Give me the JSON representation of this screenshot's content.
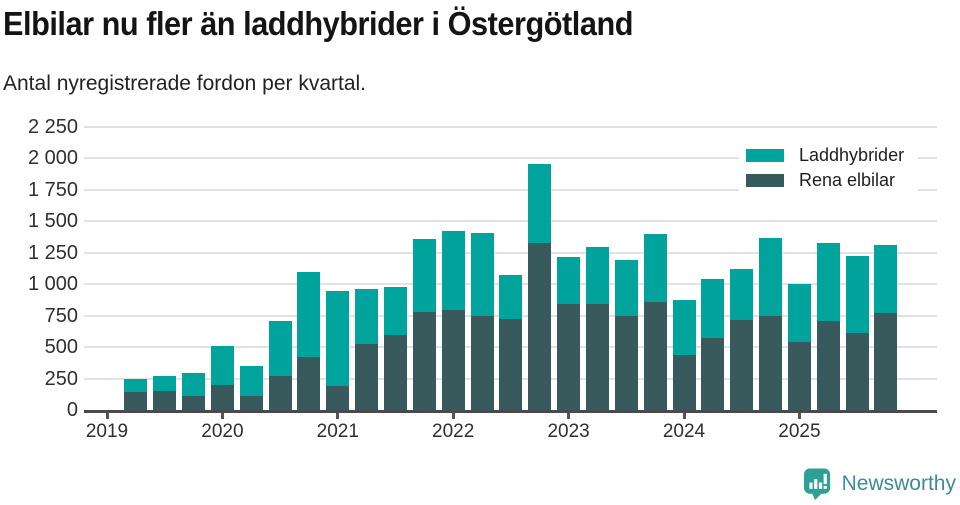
{
  "title": "Elbilar nu fler än laddhybrider i Östergötland",
  "subtitle": "Antal nyregistrerade fordon per kvartal.",
  "colors": {
    "laddhybrider": "#00a49c",
    "rena_elbilar": "#385a5c",
    "gridline": "#e2e2e2",
    "axis": "#4a4a4a",
    "background": "#ffffff",
    "logo_icon": "#2fa096",
    "logo_text": "#3e8c96"
  },
  "chart_data": {
    "type": "bar",
    "stacked": true,
    "title": "Elbilar nu fler än laddhybrider i Östergötland",
    "subtitle": "Antal nyregistrerade fordon per kvartal.",
    "categories": [
      "2019 Q2",
      "2019 Q3",
      "2019 Q4",
      "2020 Q1",
      "2020 Q2",
      "2020 Q3",
      "2020 Q4",
      "2021 Q1",
      "2021 Q2",
      "2021 Q3",
      "2021 Q4",
      "2022 Q1",
      "2022 Q2",
      "2022 Q3",
      "2022 Q4",
      "2023 Q1",
      "2023 Q2",
      "2023 Q3",
      "2023 Q4",
      "2024 Q1",
      "2024 Q2",
      "2024 Q3",
      "2024 Q4",
      "2025 Q1",
      "2025 Q2",
      "2025 Q3",
      "2025 Q4"
    ],
    "series": [
      {
        "name": "Rena elbilar",
        "color": "#385a5c",
        "values": [
          140,
          150,
          115,
          195,
          115,
          270,
          425,
          190,
          525,
          600,
          780,
          795,
          750,
          725,
          1330,
          845,
          845,
          750,
          860,
          435,
          575,
          715,
          750,
          540,
          705,
          610,
          770
        ]
      },
      {
        "name": "Laddhybrider",
        "color": "#00a49c",
        "values": [
          110,
          120,
          180,
          310,
          235,
          440,
          670,
          760,
          440,
          380,
          580,
          630,
          655,
          345,
          625,
          375,
          450,
          440,
          540,
          440,
          470,
          410,
          615,
          465,
          625,
          615,
          545
        ]
      }
    ],
    "legend": [
      {
        "label": "Laddhybrider",
        "color": "#00a49c"
      },
      {
        "label": "Rena elbilar",
        "color": "#385a5c"
      }
    ],
    "legend_position": "top-right",
    "grid": true,
    "ylim": [
      0,
      2250
    ],
    "y_ticks": [
      0,
      250,
      500,
      750,
      1000,
      1250,
      1500,
      1750,
      2000,
      2250
    ],
    "y_tick_labels": [
      "0",
      "250",
      "500",
      "750",
      "1 000",
      "1 250",
      "1 500",
      "1 750",
      "2 000",
      "2 250"
    ],
    "x_year_ticks": [
      "2019",
      "2020",
      "2021",
      "2022",
      "2023",
      "2024",
      "2025"
    ]
  },
  "footer": {
    "brand": "Newsworthy"
  }
}
